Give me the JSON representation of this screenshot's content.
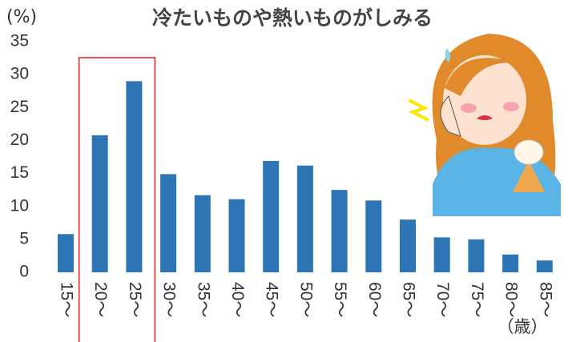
{
  "chart_data": {
    "type": "bar",
    "title": "冷たいものや熱いものがしみる",
    "y_unit": "(%)",
    "x_unit": "（歳）",
    "categories": [
      "15～",
      "20～",
      "25～",
      "30～",
      "35～",
      "40～",
      "45～",
      "50～",
      "55～",
      "60～",
      "65～",
      "70～",
      "75～",
      "80～",
      "85～"
    ],
    "values": [
      5.8,
      20.8,
      29.0,
      14.9,
      11.7,
      11.1,
      16.9,
      16.2,
      12.5,
      10.9,
      8.0,
      5.3,
      5.0,
      2.7,
      1.8
    ],
    "color": "#2e75b6",
    "highlight_color": "#e02020",
    "ylim": [
      0,
      35
    ],
    "yticks": [
      0,
      5,
      10,
      15,
      20,
      25,
      30,
      35
    ],
    "grid": false
  }
}
